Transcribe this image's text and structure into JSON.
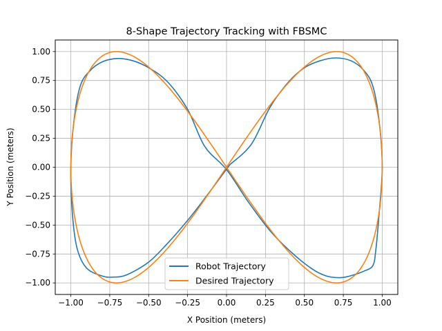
{
  "chart_data": {
    "type": "line",
    "title": "8-Shape Trajectory Tracking with FBSMC",
    "xlabel": "X Position (meters)",
    "ylabel": "Y Position (meters)",
    "xlim": [
      -1.1,
      1.1
    ],
    "ylim": [
      -1.1,
      1.1
    ],
    "grid": true,
    "legend_position": "lower center",
    "x_ticks": [
      -1.0,
      -0.75,
      -0.5,
      -0.25,
      0.0,
      0.25,
      0.5,
      0.75,
      1.0
    ],
    "y_ticks": [
      -1.0,
      -0.75,
      -0.5,
      -0.25,
      0.0,
      0.25,
      0.5,
      0.75,
      1.0
    ],
    "x_tick_labels": [
      "−1.00",
      "−0.75",
      "−0.50",
      "−0.25",
      "0.00",
      "0.25",
      "0.50",
      "0.75",
      "1.00"
    ],
    "y_tick_labels": [
      "−1.00",
      "−0.75",
      "−0.50",
      "−0.25",
      "0.00",
      "0.25",
      "0.50",
      "0.75",
      "1.00"
    ],
    "series": [
      {
        "name": "Robot Trajectory",
        "color": "#1f77b4",
        "points": [
          [
            0.02,
            0.02
          ],
          [
            0.16,
            0.2
          ],
          [
            0.28,
            0.52
          ],
          [
            0.4,
            0.74
          ],
          [
            0.5,
            0.86
          ],
          [
            0.6,
            0.92
          ],
          [
            0.7,
            0.945
          ],
          [
            0.8,
            0.92
          ],
          [
            0.88,
            0.84
          ],
          [
            0.94,
            0.7
          ],
          [
            0.98,
            0.4
          ],
          [
            1.0,
            0.0
          ],
          [
            0.98,
            -0.4
          ],
          [
            0.96,
            -0.7
          ],
          [
            0.94,
            -0.85
          ],
          [
            0.88,
            -0.9
          ],
          [
            0.84,
            -0.92
          ],
          [
            0.78,
            -0.945
          ],
          [
            0.72,
            -0.955
          ],
          [
            0.64,
            -0.94
          ],
          [
            0.55,
            -0.88
          ],
          [
            0.42,
            -0.74
          ],
          [
            0.28,
            -0.55
          ],
          [
            0.14,
            -0.3
          ],
          [
            0.0,
            -0.02
          ],
          [
            -0.14,
            0.18
          ],
          [
            -0.25,
            0.5
          ],
          [
            -0.38,
            0.74
          ],
          [
            -0.5,
            0.86
          ],
          [
            -0.6,
            0.92
          ],
          [
            -0.7,
            0.94
          ],
          [
            -0.8,
            0.91
          ],
          [
            -0.88,
            0.83
          ],
          [
            -0.94,
            0.7
          ],
          [
            -0.98,
            0.4
          ],
          [
            -1.0,
            0.0
          ],
          [
            -0.99,
            -0.4
          ],
          [
            -0.96,
            -0.7
          ],
          [
            -0.9,
            -0.87
          ],
          [
            -0.8,
            -0.94
          ],
          [
            -0.73,
            -0.95
          ],
          [
            -0.64,
            -0.93
          ],
          [
            -0.5,
            -0.82
          ],
          [
            -0.38,
            -0.66
          ],
          [
            -0.25,
            -0.46
          ],
          [
            -0.14,
            -0.27
          ],
          [
            0.02,
            0.02
          ]
        ]
      },
      {
        "name": "Desired Trajectory",
        "color": "#ff7f0e",
        "x_formula": "cos(t)",
        "y_formula": "sin(2t)",
        "t_range": [
          0,
          6.2832
        ]
      }
    ]
  }
}
